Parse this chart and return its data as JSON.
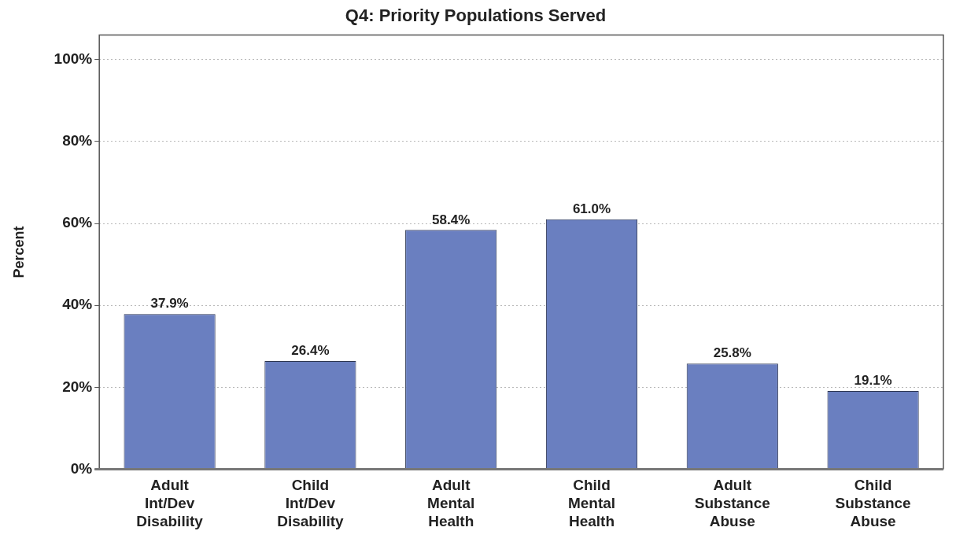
{
  "chart_data": {
    "type": "bar",
    "title": "Q4: Priority Populations Served",
    "ylabel": "Percent",
    "categories": [
      "Adult Int/Dev Disability",
      "Child Int/Dev Disability",
      "Adult Mental Health",
      "Child Mental Health",
      "Adult Substance Abuse",
      "Child Substance Abuse"
    ],
    "values": [
      37.9,
      26.4,
      58.4,
      61.0,
      25.8,
      19.1
    ],
    "value_labels": [
      "37.9%",
      "26.4%",
      "58.4%",
      "61.0%",
      "25.8%",
      "19.1%"
    ],
    "color": "#6a7fc0",
    "ylim": [
      0,
      106
    ],
    "yticks": [
      {
        "value": 0,
        "label": "0%"
      },
      {
        "value": 20,
        "label": "20%"
      },
      {
        "value": 40,
        "label": "40%"
      },
      {
        "value": 60,
        "label": "60%"
      },
      {
        "value": 80,
        "label": "80%"
      },
      {
        "value": 100,
        "label": "100%"
      }
    ],
    "grid": "y",
    "legend": false
  }
}
